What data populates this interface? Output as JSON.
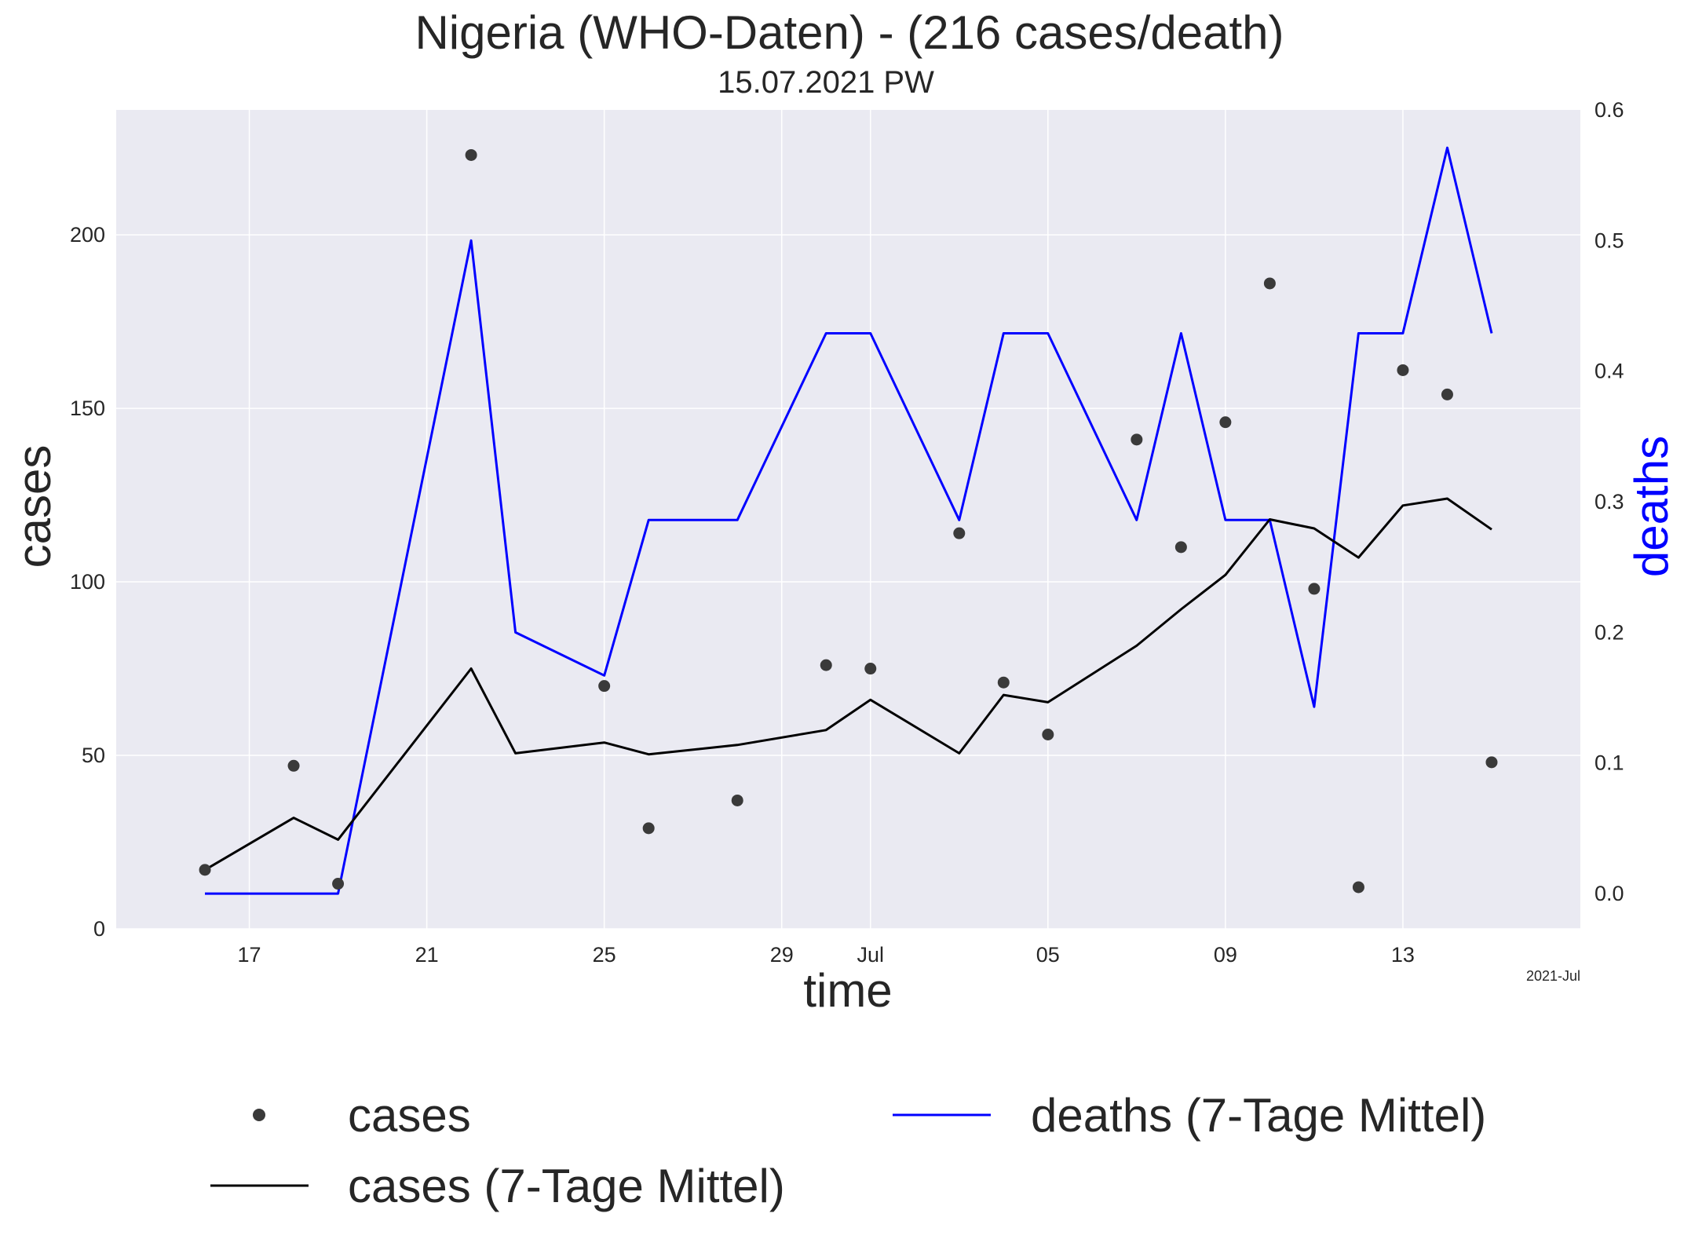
{
  "chart_data": {
    "type": "line",
    "title": "Nigeria (WHO-Daten) - (216 cases/death)",
    "subtitle": "15.07.2021 PW",
    "xlabel": "time",
    "ylabel_left": "cases",
    "ylabel_right": "deaths",
    "x_axis_offset_label": "2021-Jul",
    "x_range": [
      "2021-06-14",
      "2021-07-17"
    ],
    "y_left_range": [
      0,
      236
    ],
    "y_right_range": [
      -0.027,
      0.6
    ],
    "grid": true,
    "legend_placement": "bottom",
    "x_ticks": [
      {
        "date": "2021-06-17",
        "label": "17"
      },
      {
        "date": "2021-06-21",
        "label": "21"
      },
      {
        "date": "2021-06-25",
        "label": "25"
      },
      {
        "date": "2021-06-29",
        "label": "29"
      },
      {
        "date": "2021-07-01",
        "label": "Jul"
      },
      {
        "date": "2021-07-05",
        "label": "05"
      },
      {
        "date": "2021-07-09",
        "label": "09"
      },
      {
        "date": "2021-07-13",
        "label": "13"
      }
    ],
    "y_left_ticks": [
      {
        "value": 0,
        "label": "0"
      },
      {
        "value": 50,
        "label": "50"
      },
      {
        "value": 100,
        "label": "100"
      },
      {
        "value": 150,
        "label": "150"
      },
      {
        "value": 200,
        "label": "200"
      }
    ],
    "y_right_ticks": [
      {
        "value": 0.0,
        "label": "0.0"
      },
      {
        "value": 0.1,
        "label": "0.1"
      },
      {
        "value": 0.2,
        "label": "0.2"
      },
      {
        "value": 0.3,
        "label": "0.3"
      },
      {
        "value": 0.4,
        "label": "0.4"
      },
      {
        "value": 0.5,
        "label": "0.5"
      },
      {
        "value": 0.6,
        "label": "0.6"
      }
    ],
    "series": [
      {
        "name": "cases",
        "kind": "scatter",
        "axis": "left",
        "color": "#3a3a3a",
        "points": [
          {
            "x": "2021-06-16",
            "y": 17
          },
          {
            "x": "2021-06-18",
            "y": 47
          },
          {
            "x": "2021-06-19",
            "y": 13
          },
          {
            "x": "2021-06-22",
            "y": 223
          },
          {
            "x": "2021-06-25",
            "y": 70
          },
          {
            "x": "2021-06-26",
            "y": 29
          },
          {
            "x": "2021-06-28",
            "y": 37
          },
          {
            "x": "2021-06-30",
            "y": 76
          },
          {
            "x": "2021-07-01",
            "y": 75
          },
          {
            "x": "2021-07-03",
            "y": 114
          },
          {
            "x": "2021-07-04",
            "y": 71
          },
          {
            "x": "2021-07-05",
            "y": 56
          },
          {
            "x": "2021-07-07",
            "y": 141
          },
          {
            "x": "2021-07-08",
            "y": 110
          },
          {
            "x": "2021-07-09",
            "y": 146
          },
          {
            "x": "2021-07-10",
            "y": 186
          },
          {
            "x": "2021-07-11",
            "y": 98
          },
          {
            "x": "2021-07-12",
            "y": 12
          },
          {
            "x": "2021-07-13",
            "y": 161
          },
          {
            "x": "2021-07-14",
            "y": 154
          },
          {
            "x": "2021-07-15",
            "y": 48
          }
        ]
      },
      {
        "name": "cases (7-Tage Mittel)",
        "kind": "line",
        "axis": "left",
        "color": "#000000",
        "points": [
          {
            "x": "2021-06-16",
            "y": 17
          },
          {
            "x": "2021-06-18",
            "y": 32
          },
          {
            "x": "2021-06-19",
            "y": 25.7
          },
          {
            "x": "2021-06-22",
            "y": 75
          },
          {
            "x": "2021-06-23",
            "y": 50.6
          },
          {
            "x": "2021-06-25",
            "y": 53.7
          },
          {
            "x": "2021-06-26",
            "y": 50.3
          },
          {
            "x": "2021-06-28",
            "y": 53
          },
          {
            "x": "2021-06-30",
            "y": 57.3
          },
          {
            "x": "2021-07-01",
            "y": 66
          },
          {
            "x": "2021-07-03",
            "y": 50.6
          },
          {
            "x": "2021-07-04",
            "y": 67.4
          },
          {
            "x": "2021-07-05",
            "y": 65.3
          },
          {
            "x": "2021-07-07",
            "y": 81.6
          },
          {
            "x": "2021-07-08",
            "y": 92.1
          },
          {
            "x": "2021-07-09",
            "y": 102
          },
          {
            "x": "2021-07-10",
            "y": 118
          },
          {
            "x": "2021-07-11",
            "y": 115.4
          },
          {
            "x": "2021-07-12",
            "y": 107
          },
          {
            "x": "2021-07-13",
            "y": 122
          },
          {
            "x": "2021-07-14",
            "y": 124
          },
          {
            "x": "2021-07-15",
            "y": 115.1
          }
        ]
      },
      {
        "name": "deaths (7-Tage Mittel)",
        "kind": "line",
        "axis": "right",
        "color": "#0000ff",
        "points": [
          {
            "x": "2021-06-16",
            "y": 0.0
          },
          {
            "x": "2021-06-19",
            "y": 0.0
          },
          {
            "x": "2021-06-22",
            "y": 0.5
          },
          {
            "x": "2021-06-23",
            "y": 0.2
          },
          {
            "x": "2021-06-25",
            "y": 0.167
          },
          {
            "x": "2021-06-26",
            "y": 0.286
          },
          {
            "x": "2021-06-28",
            "y": 0.286
          },
          {
            "x": "2021-06-30",
            "y": 0.429
          },
          {
            "x": "2021-07-01",
            "y": 0.429
          },
          {
            "x": "2021-07-03",
            "y": 0.286
          },
          {
            "x": "2021-07-04",
            "y": 0.429
          },
          {
            "x": "2021-07-05",
            "y": 0.429
          },
          {
            "x": "2021-07-07",
            "y": 0.286
          },
          {
            "x": "2021-07-08",
            "y": 0.429
          },
          {
            "x": "2021-07-09",
            "y": 0.286
          },
          {
            "x": "2021-07-10",
            "y": 0.286
          },
          {
            "x": "2021-07-11",
            "y": 0.143
          },
          {
            "x": "2021-07-12",
            "y": 0.429
          },
          {
            "x": "2021-07-13",
            "y": 0.429
          },
          {
            "x": "2021-07-14",
            "y": 0.571
          },
          {
            "x": "2021-07-15",
            "y": 0.429
          }
        ]
      }
    ]
  },
  "legend": {
    "cases": "cases",
    "cases_avg": "cases (7-Tage Mittel)",
    "deaths_avg": "deaths (7-Tage Mittel)"
  }
}
